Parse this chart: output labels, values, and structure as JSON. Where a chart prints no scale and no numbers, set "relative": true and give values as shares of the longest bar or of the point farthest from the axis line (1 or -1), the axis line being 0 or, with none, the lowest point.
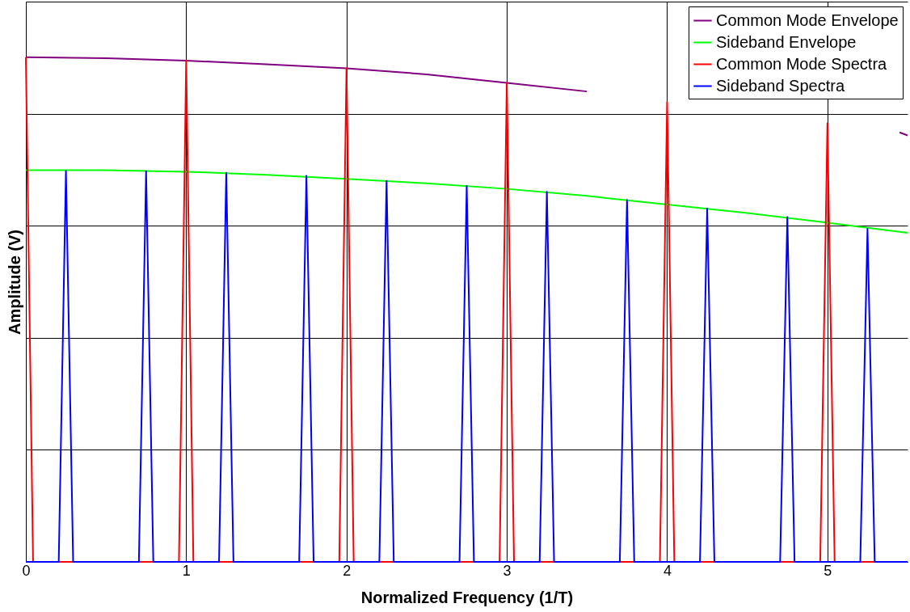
{
  "chart_data": {
    "type": "line",
    "xlabel": "Normalized Frequency (1/T)",
    "ylabel": "Amplitude (V)",
    "relative": true,
    "xlim": [
      0,
      5.5
    ],
    "xticks": [
      0,
      1,
      2,
      3,
      4,
      5
    ],
    "grid": true,
    "legend": "top right",
    "series": [
      {
        "name": "Common Mode Envelope",
        "color": "#800080",
        "x": [
          0,
          0.5,
          1,
          1.5,
          2,
          2.5,
          3,
          3.5,
          4,
          4.5,
          5,
          5.45,
          5.5
        ],
        "values": [
          1.0,
          0.998,
          0.993,
          0.986,
          0.978,
          0.966,
          0.949,
          0.932,
          null,
          null,
          null,
          0.851,
          0.845
        ]
      },
      {
        "name": "Sideband Envelope",
        "color": "#00ff00",
        "x": [
          0,
          0.5,
          1,
          1.5,
          2,
          2.5,
          3,
          3.5,
          4,
          4.5,
          5,
          5.5
        ],
        "values": [
          0.776,
          0.776,
          0.773,
          0.767,
          0.759,
          0.75,
          0.739,
          0.725,
          0.708,
          0.691,
          0.672,
          0.652
        ]
      },
      {
        "name": "Common Mode Spectra",
        "color": "#ff0000",
        "x": [
          0,
          0.045,
          0.955,
          1,
          1.045,
          1.955,
          2,
          2.045,
          2.955,
          3,
          3.045,
          3.955,
          4,
          4.045,
          4.955,
          5,
          5.045,
          5.5
        ],
        "values": [
          1.0,
          0,
          0,
          0.993,
          0,
          0,
          0.978,
          0,
          0,
          0.949,
          0,
          0,
          0.911,
          0,
          0,
          0.869,
          0,
          0
        ]
      },
      {
        "name": "Sideband Spectra",
        "color": "#0000ff",
        "x": [
          0,
          0.205,
          0.25,
          0.295,
          0.705,
          0.75,
          0.795,
          1.205,
          1.25,
          1.295,
          1.705,
          1.75,
          1.795,
          2.205,
          2.25,
          2.295,
          2.705,
          2.75,
          2.795,
          3.205,
          3.25,
          3.295,
          3.705,
          3.75,
          3.795,
          4.205,
          4.25,
          4.295,
          4.705,
          4.75,
          4.795,
          5.205,
          5.25,
          5.295,
          5.5
        ],
        "values": [
          0,
          0,
          0.775,
          0,
          0,
          0.774,
          0,
          0,
          0.771,
          0,
          0,
          0.765,
          0,
          0,
          0.755,
          0,
          0,
          0.745,
          0,
          0,
          0.733,
          0,
          0,
          0.717,
          0,
          0,
          0.7,
          0,
          0,
          0.683,
          0,
          0,
          0.66,
          0,
          0
        ]
      }
    ]
  }
}
